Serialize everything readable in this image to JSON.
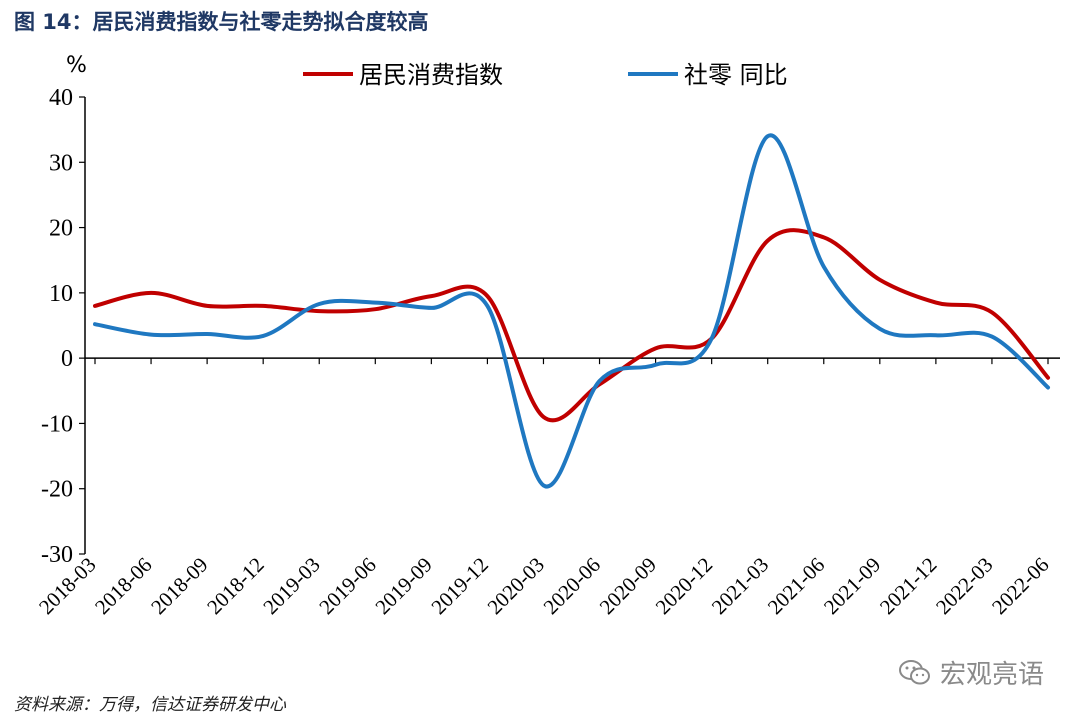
{
  "figure": {
    "title": "图 14：居民消费指数与社零走势拟合度较高",
    "source": "资料来源：万得，信达证券研发中心",
    "watermark": "宏观亮语"
  },
  "chart_data": {
    "type": "line",
    "yunit": "%",
    "ylim": [
      -30,
      40
    ],
    "yticks": [
      40,
      30,
      20,
      10,
      0,
      -10,
      -20,
      -30
    ],
    "categories": [
      "2018-03",
      "2018-06",
      "2018-09",
      "2018-12",
      "2019-03",
      "2019-06",
      "2019-09",
      "2019-12",
      "2020-03",
      "2020-06",
      "2020-09",
      "2020-12",
      "2021-03",
      "2021-06",
      "2021-09",
      "2021-12",
      "2022-03",
      "2022-06"
    ],
    "series": [
      {
        "name": "居民消费指数",
        "color": "#c00000",
        "values": [
          8.0,
          10.0,
          8.0,
          8.0,
          7.2,
          7.5,
          9.5,
          9.5,
          -9.0,
          -4.0,
          1.5,
          3.0,
          18.0,
          18.5,
          12.0,
          8.5,
          7.0,
          -3.0
        ]
      },
      {
        "name": "社零 同比",
        "color": "#1f78c1",
        "values": [
          5.2,
          3.6,
          3.7,
          3.4,
          8.3,
          8.5,
          7.7,
          8.0,
          -19.5,
          -3.5,
          -1.0,
          3.0,
          34.0,
          14.0,
          4.5,
          3.5,
          3.3,
          -4.5
        ]
      }
    ]
  }
}
